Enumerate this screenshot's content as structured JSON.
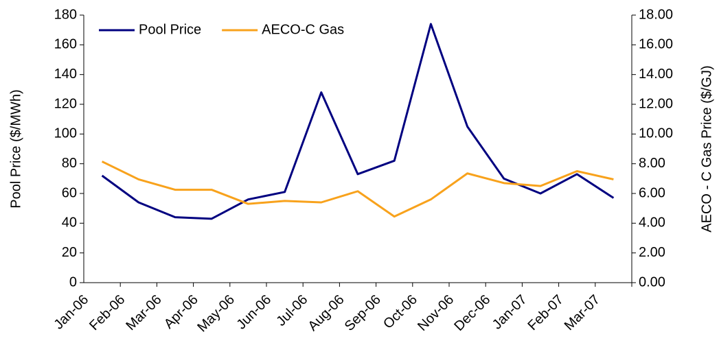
{
  "chart_data": {
    "type": "line",
    "categories": [
      "Jan-06",
      "Feb-06",
      "Mar-06",
      "Apr-06",
      "May-06",
      "Jun-06",
      "Jul-06",
      "Aug-06",
      "Sep-06",
      "Oct-06",
      "Nov-06",
      "Dec-06",
      "Jan-07",
      "Feb-07",
      "Mar-07"
    ],
    "series": [
      {
        "name": "Pool Price",
        "color": "#000080",
        "values": [
          72,
          54,
          44,
          43,
          56,
          61,
          128,
          73,
          82,
          174,
          105,
          70,
          60,
          73,
          57
        ]
      },
      {
        "name": "AECO-C Gas",
        "color": "#f8a21c",
        "axis": "y2",
        "values": [
          8.15,
          6.95,
          6.25,
          6.25,
          5.3,
          5.5,
          5.4,
          6.15,
          4.45,
          5.6,
          7.35,
          6.7,
          6.5,
          7.5,
          6.95
        ]
      }
    ],
    "ylabel": "Pool Price ($/MWh)",
    "y2label": "AECO - C Gas Price ($/GJ)",
    "ylim": [
      0,
      180
    ],
    "yticks": [
      0,
      20,
      40,
      60,
      80,
      100,
      120,
      140,
      160,
      180
    ],
    "y2lim": [
      0,
      18
    ],
    "y2ticks": [
      {
        "value": 0,
        "label": "0.00"
      },
      {
        "value": 2,
        "label": "2.00"
      },
      {
        "value": 4,
        "label": "4.00"
      },
      {
        "value": 6,
        "label": "6.00"
      },
      {
        "value": 8,
        "label": "8.00"
      },
      {
        "value": 10,
        "label": "10.00"
      },
      {
        "value": 12,
        "label": "12.00"
      },
      {
        "value": 14,
        "label": "14.00"
      },
      {
        "value": 16,
        "label": "16.00"
      },
      {
        "value": 18,
        "label": "18.00"
      }
    ],
    "legend": "upper left",
    "grid": false
  }
}
